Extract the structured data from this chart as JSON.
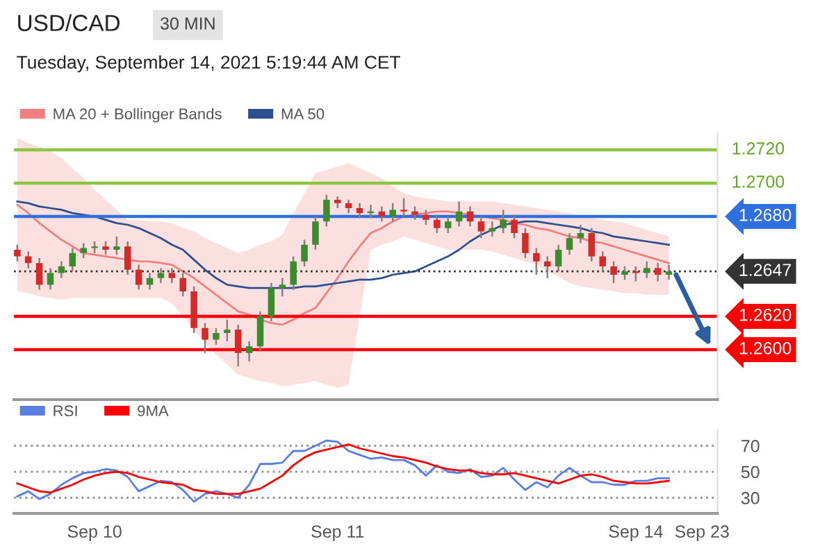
{
  "chart_data": [
    {
      "type": "candlestick",
      "title": "USD/CAD",
      "subtitle": "Tuesday, September 14, 2021 5:19:44 AM CET",
      "annotations": [
        "30 MIN"
      ],
      "categories": [
        null,
        null,
        null,
        null,
        null,
        null,
        null,
        null,
        null,
        null,
        null,
        null,
        null,
        null,
        null,
        null,
        null,
        null,
        null,
        null,
        null,
        null,
        null,
        null,
        null,
        null,
        null,
        null,
        null,
        null,
        null,
        null,
        null,
        null,
        null,
        null,
        null,
        null,
        null,
        null,
        null,
        null,
        null,
        null,
        null,
        null,
        null,
        null,
        null,
        null,
        null,
        null,
        null,
        null,
        null,
        null,
        null,
        null,
        null,
        null,
        null,
        null,
        null
      ],
      "ohlc": [
        [
          1.266,
          1.2663,
          1.2653,
          1.2656
        ],
        [
          1.2656,
          1.2659,
          1.2649,
          1.2652
        ],
        [
          1.2652,
          1.2655,
          1.2636,
          1.2639
        ],
        [
          1.2639,
          1.2649,
          1.2636,
          1.2646
        ],
        [
          1.2646,
          1.2653,
          1.2643,
          1.265
        ],
        [
          1.265,
          1.2661,
          1.2647,
          1.2658
        ],
        [
          1.2658,
          1.2664,
          1.2655,
          1.2661
        ],
        [
          1.2661,
          1.2665,
          1.2658,
          1.2662
        ],
        [
          1.2662,
          1.2665,
          1.2657,
          1.266
        ],
        [
          1.266,
          1.2668,
          1.2657,
          1.2662
        ],
        [
          1.2662,
          1.2665,
          1.2645,
          1.2648
        ],
        [
          1.2648,
          1.2651,
          1.2636,
          1.2639
        ],
        [
          1.2639,
          1.2646,
          1.2636,
          1.2643
        ],
        [
          1.2643,
          1.2649,
          1.264,
          1.2646
        ],
        [
          1.2646,
          1.2649,
          1.264,
          1.2643
        ],
        [
          1.2643,
          1.2646,
          1.2632,
          1.2635
        ],
        [
          1.2635,
          1.2638,
          1.261,
          1.2613
        ],
        [
          1.2613,
          1.2616,
          1.2598,
          1.2606
        ],
        [
          1.2606,
          1.2613,
          1.2603,
          1.261
        ],
        [
          1.261,
          1.2618,
          1.2605,
          1.2612
        ],
        [
          1.2612,
          1.2615,
          1.259,
          1.2598
        ],
        [
          1.2598,
          1.2605,
          1.2593,
          1.2602
        ],
        [
          1.2602,
          1.2623,
          1.2599,
          1.262
        ],
        [
          1.262,
          1.264,
          1.2617,
          1.2637
        ],
        [
          1.2637,
          1.2643,
          1.2632,
          1.2639
        ],
        [
          1.2639,
          1.2656,
          1.2636,
          1.2653
        ],
        [
          1.2653,
          1.2666,
          1.265,
          1.2663
        ],
        [
          1.2663,
          1.268,
          1.266,
          1.2677
        ],
        [
          1.2677,
          1.2693,
          1.2674,
          1.269
        ],
        [
          1.269,
          1.2692,
          1.2685,
          1.2688
        ],
        [
          1.2688,
          1.269,
          1.2682,
          1.2685
        ],
        [
          1.2685,
          1.2688,
          1.2679,
          1.2682
        ],
        [
          1.2682,
          1.2687,
          1.2679,
          1.2683
        ],
        [
          1.2683,
          1.2686,
          1.2677,
          1.268
        ],
        [
          1.268,
          1.2688,
          1.2677,
          1.2684
        ],
        [
          1.2684,
          1.2691,
          1.268,
          1.2683
        ],
        [
          1.2683,
          1.2686,
          1.2678,
          1.2681
        ],
        [
          1.2681,
          1.2684,
          1.2675,
          1.2678
        ],
        [
          1.2678,
          1.2681,
          1.267,
          1.2673
        ],
        [
          1.2673,
          1.268,
          1.267,
          1.2677
        ],
        [
          1.2677,
          1.2689,
          1.2674,
          1.2683
        ],
        [
          1.2683,
          1.2686,
          1.2674,
          1.2677
        ],
        [
          1.2677,
          1.268,
          1.2667,
          1.2671
        ],
        [
          1.2671,
          1.2677,
          1.2668,
          1.2673
        ],
        [
          1.2673,
          1.2684,
          1.267,
          1.2678
        ],
        [
          1.2678,
          1.2681,
          1.2667,
          1.267
        ],
        [
          1.267,
          1.2673,
          1.2655,
          1.2658
        ],
        [
          1.2658,
          1.2661,
          1.2645,
          1.2653
        ],
        [
          1.2653,
          1.2656,
          1.2643,
          1.265
        ],
        [
          1.265,
          1.2663,
          1.2647,
          1.266
        ],
        [
          1.266,
          1.267,
          1.2657,
          1.2667
        ],
        [
          1.2667,
          1.2675,
          1.2664,
          1.267
        ],
        [
          1.267,
          1.2673,
          1.2653,
          1.2656
        ],
        [
          1.2656,
          1.2659,
          1.2647,
          1.265
        ],
        [
          1.265,
          1.2653,
          1.264,
          1.2645
        ],
        [
          1.2645,
          1.265,
          1.2642,
          1.2647
        ],
        [
          1.2647,
          1.265,
          1.2641,
          1.2646
        ],
        [
          1.2646,
          1.2653,
          1.2643,
          1.2649
        ],
        [
          1.2649,
          1.2652,
          1.2641,
          1.2645
        ],
        [
          1.2645,
          1.2651,
          1.2642,
          1.2647
        ],
        null,
        null,
        null
      ],
      "series": [
        {
          "name": "MA 20 + Bollinger Bands",
          "type": "line",
          "color": "#f28080",
          "values": [
            1.2687,
            1.2682,
            1.2676,
            1.2671,
            1.2666,
            1.2662,
            1.2658,
            1.2657,
            1.2656,
            1.2655,
            1.2654,
            1.2653,
            1.2653,
            1.2652,
            1.2651,
            1.2647,
            1.2643,
            1.2638,
            1.2633,
            1.2628,
            1.2623,
            1.2621,
            1.2618,
            1.2616,
            1.2615,
            1.2618,
            1.2622,
            1.2625,
            1.2634,
            1.2643,
            1.2653,
            1.2662,
            1.267,
            1.2673,
            1.2677,
            1.268,
            1.2681,
            1.2682,
            1.2683,
            1.2683,
            1.2682,
            1.2681,
            1.268,
            1.2679,
            1.2678,
            1.2676,
            1.2675,
            1.2673,
            1.2672,
            1.267,
            1.2668,
            1.2667,
            1.2665,
            1.2664,
            1.2662,
            1.266,
            1.2658,
            1.2656,
            1.2654,
            1.2652,
            null,
            null,
            null
          ],
          "upper": [
            1.2727,
            1.2724,
            1.2722,
            1.2719,
            1.2715,
            1.2709,
            1.2703,
            1.2696,
            1.269,
            1.2684,
            1.2678,
            1.2678,
            1.2677,
            1.2677,
            1.2676,
            1.2673,
            1.2671,
            1.2667,
            1.2664,
            1.2661,
            1.2658,
            1.266,
            1.2663,
            1.2665,
            1.2669,
            1.2682,
            1.2694,
            1.2706,
            1.2708,
            1.271,
            1.2712,
            1.2709,
            1.2706,
            1.2703,
            1.2698,
            1.2694,
            1.2692,
            1.2691,
            1.269,
            1.2689,
            1.2689,
            1.2689,
            1.2689,
            1.2689,
            1.2688,
            1.2687,
            1.2686,
            1.2685,
            1.2684,
            1.2683,
            1.2682,
            1.268,
            1.2679,
            1.2678,
            1.2677,
            1.2676,
            1.2674,
            1.2672,
            1.267,
            1.2668,
            null,
            null,
            null
          ],
          "lower": [
            1.2635,
            1.2634,
            1.2632,
            1.2631,
            1.263,
            1.2631,
            1.2631,
            1.2631,
            1.2631,
            1.2631,
            1.2631,
            1.2631,
            1.2631,
            1.2631,
            1.2628,
            1.262,
            1.2612,
            1.2604,
            1.2597,
            1.2591,
            1.2585,
            1.2583,
            1.2581,
            1.258,
            1.2578,
            1.2579,
            1.258,
            1.2581,
            1.2579,
            1.2577,
            1.2579,
            1.262,
            1.266,
            1.2663,
            1.2665,
            1.2668,
            1.2666,
            1.2664,
            1.2662,
            1.266,
            1.266,
            1.266,
            1.266,
            1.2659,
            1.2657,
            1.2655,
            1.2653,
            1.2651,
            1.2647,
            1.2644,
            1.264,
            1.2638,
            1.2637,
            1.2636,
            1.2635,
            1.2634,
            1.2634,
            1.2633,
            1.2633,
            1.2633,
            null,
            null,
            null
          ]
        },
        {
          "name": "MA 50",
          "type": "line",
          "color": "#2d4f8e",
          "values": [
            1.2689,
            1.2688,
            1.2686,
            1.2685,
            1.2684,
            1.2682,
            1.2681,
            1.268,
            1.2678,
            1.2676,
            1.2675,
            1.2673,
            1.267,
            1.2667,
            1.2663,
            1.266,
            1.2654,
            1.2648,
            1.2643,
            1.2639,
            1.2638,
            1.2637,
            1.2637,
            1.2637,
            1.2637,
            1.2637,
            1.2638,
            1.2638,
            1.2639,
            1.264,
            1.2641,
            1.2642,
            1.2642,
            1.2643,
            1.2645,
            1.2646,
            1.2647,
            1.265,
            1.2653,
            1.2656,
            1.266,
            1.2665,
            1.2669,
            1.2672,
            1.2675,
            1.2676,
            1.2677,
            1.2677,
            1.2676,
            1.2675,
            1.2674,
            1.2673,
            1.2671,
            1.267,
            1.2668,
            1.2667,
            1.2666,
            1.2665,
            1.2664,
            1.2663,
            null,
            null,
            null
          ]
        }
      ],
      "ref_lines": [
        {
          "axis": "y",
          "value": 1.272,
          "label": "1.2720",
          "color": "#8cc63f"
        },
        {
          "axis": "y",
          "value": 1.27,
          "label": "1.2700",
          "color": "#8cc63f"
        },
        {
          "axis": "y",
          "value": 1.268,
          "label": "1.2680",
          "color": "#2f6fe0"
        },
        {
          "axis": "y",
          "value": 1.2647,
          "label": "1.2647",
          "color": "#333333",
          "line_style": "dotted"
        },
        {
          "axis": "y",
          "value": 1.262,
          "label": "1.2620",
          "color": "#ff0000"
        },
        {
          "axis": "y",
          "value": 1.26,
          "label": "1.2600",
          "color": "#ff0000"
        }
      ],
      "ylim": [
        1.257,
        1.273
      ],
      "legend": "top left"
    },
    {
      "type": "line",
      "categories": [
        null,
        null,
        null,
        null,
        null,
        null,
        null,
        "Sep 10",
        null,
        null,
        null,
        null,
        null,
        null,
        null,
        null,
        null,
        null,
        null,
        null,
        null,
        null,
        null,
        null,
        null,
        null,
        null,
        null,
        null,
        "Sep 11",
        null,
        null,
        null,
        null,
        null,
        null,
        null,
        null,
        null,
        null,
        null,
        null,
        null,
        null,
        null,
        null,
        null,
        null,
        null,
        null,
        null,
        null,
        null,
        null,
        null,
        null,
        "Sep 14",
        null,
        null,
        null,
        null,
        null,
        "Sep 23"
      ],
      "series": [
        {
          "name": "RSI",
          "color": "#5b7fe0",
          "values": [
            31,
            35,
            29,
            33,
            40,
            45,
            49,
            50,
            52,
            51,
            46,
            35,
            39,
            43,
            42,
            36,
            27,
            33,
            35,
            33,
            30,
            40,
            56,
            56,
            57,
            66,
            66,
            70,
            74,
            73,
            66,
            63,
            60,
            61,
            59,
            59,
            55,
            47,
            55,
            50,
            49,
            52,
            46,
            47,
            53,
            44,
            36,
            42,
            38,
            47,
            53,
            47,
            42,
            42,
            40,
            40,
            43,
            43,
            45,
            45,
            null,
            null,
            null
          ]
        },
        {
          "name": "9MA",
          "color": "#ff0000",
          "values": [
            41,
            38,
            35,
            34,
            37,
            40,
            44,
            47,
            49,
            50,
            49,
            46,
            44,
            42,
            41,
            40,
            36,
            35,
            33,
            33,
            33,
            35,
            37,
            42,
            47,
            55,
            61,
            65,
            67,
            69,
            71,
            68,
            66,
            64,
            62,
            61,
            59,
            57,
            54,
            52,
            51,
            51,
            49,
            48,
            48,
            49,
            47,
            45,
            43,
            41,
            44,
            47,
            48,
            46,
            43,
            42,
            41,
            41,
            42,
            43,
            null,
            null,
            null
          ]
        }
      ],
      "ylim": [
        18,
        82
      ],
      "yticks": [
        30,
        50,
        70
      ],
      "grid": "y",
      "legend": "top left"
    }
  ]
}
